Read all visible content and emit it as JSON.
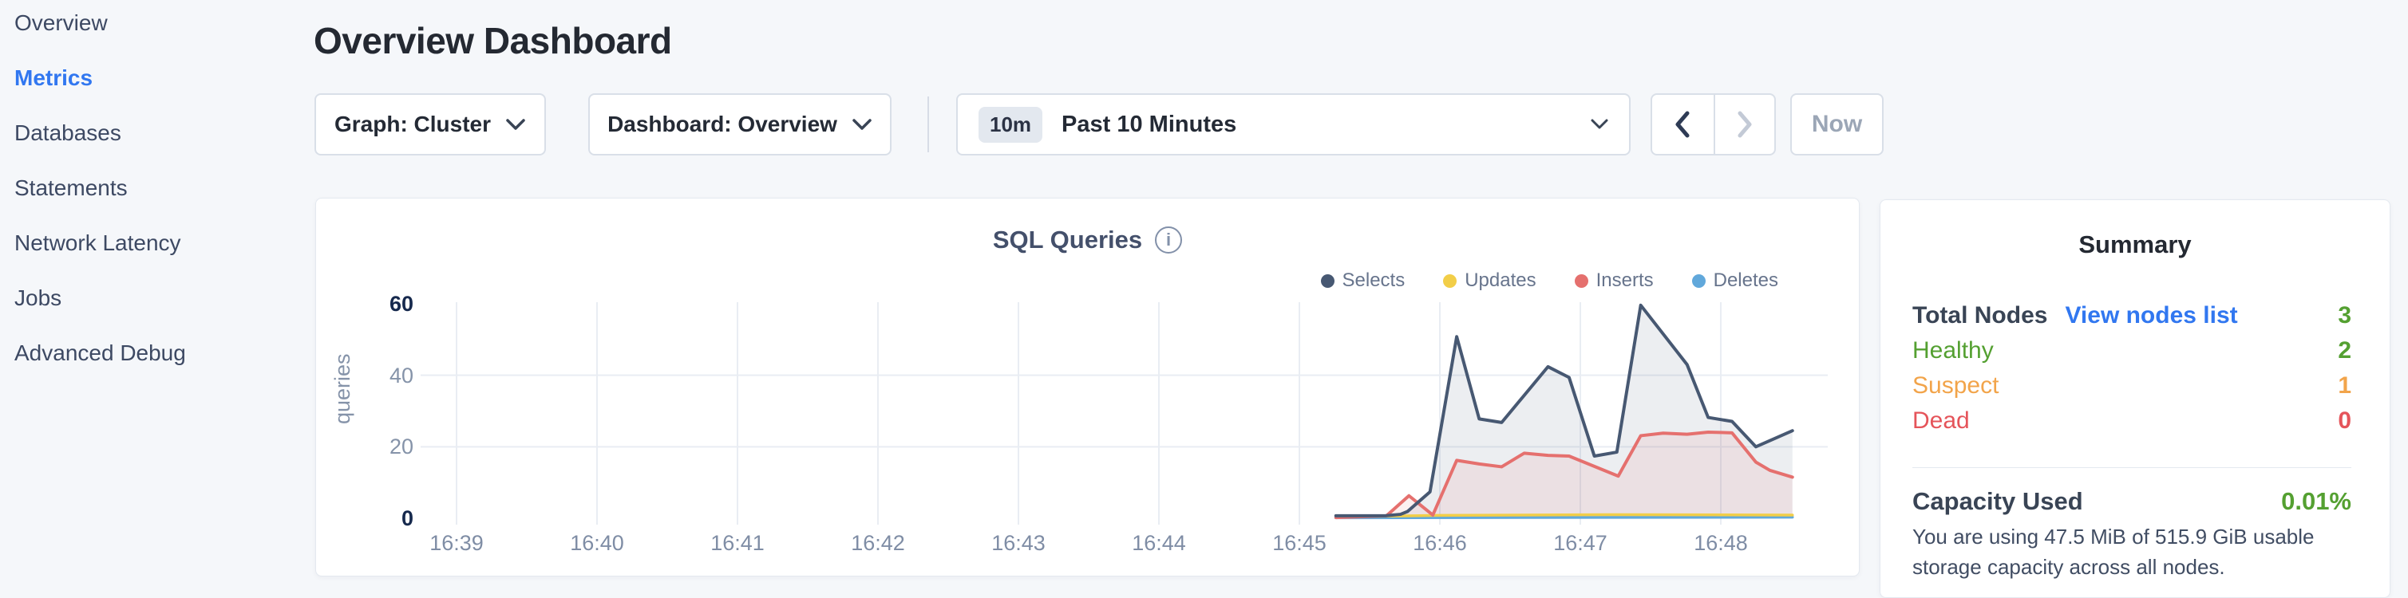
{
  "colors": {
    "accent_blue": "#3177f0",
    "green": "#54a031",
    "orange": "#f2a44a",
    "red": "#e5545a",
    "selects_navy": "#475872",
    "updates_yellow": "#f2ce48",
    "inserts_red": "#e5706e",
    "deletes_blue": "#61a8db"
  },
  "sidebar": {
    "items": [
      {
        "label": "Overview",
        "active": false
      },
      {
        "label": "Metrics",
        "active": true
      },
      {
        "label": "Databases",
        "active": false
      },
      {
        "label": "Statements",
        "active": false
      },
      {
        "label": "Network Latency",
        "active": false
      },
      {
        "label": "Jobs",
        "active": false
      },
      {
        "label": "Advanced Debug",
        "active": false
      }
    ]
  },
  "header": {
    "title": "Overview Dashboard"
  },
  "controls": {
    "graph_dropdown": "Graph: Cluster",
    "dashboard_dropdown": "Dashboard: Overview",
    "time_badge": "10m",
    "time_label": "Past 10 Minutes",
    "now_label": "Now"
  },
  "chart_data": {
    "type": "area",
    "title": "SQL Queries",
    "ylabel": "queries",
    "x_ticks": [
      "16:39",
      "16:40",
      "16:41",
      "16:42",
      "16:43",
      "16:44",
      "16:45",
      "16:46",
      "16:47",
      "16:48"
    ],
    "y_ticks": [
      60,
      40,
      20,
      0
    ],
    "ylim": [
      0,
      60
    ],
    "grid": true,
    "legend_position": "top-right",
    "series": [
      {
        "name": "Selects",
        "color": "#475872",
        "fill": "rgba(71,88,114,0.10)",
        "points": [
          [
            6.26,
            0.7
          ],
          [
            6.61,
            0.7
          ],
          [
            6.72,
            1.1
          ],
          [
            6.77,
            1.9
          ],
          [
            6.93,
            7.4
          ],
          [
            7.12,
            50.8
          ],
          [
            7.28,
            27.8
          ],
          [
            7.44,
            26.8
          ],
          [
            7.77,
            42.4
          ],
          [
            7.92,
            39.4
          ],
          [
            8.1,
            17.4
          ],
          [
            8.26,
            18.5
          ],
          [
            8.43,
            59.6
          ],
          [
            8.76,
            43.0
          ],
          [
            8.91,
            28.2
          ],
          [
            9.08,
            27.1
          ],
          [
            9.25,
            20.0
          ],
          [
            9.51,
            24.5
          ]
        ]
      },
      {
        "name": "Updates",
        "color": "#f2ce48",
        "fill": null,
        "points": [
          [
            6.26,
            0.4
          ],
          [
            7.0,
            0.8
          ],
          [
            8.2,
            1.0
          ],
          [
            9.51,
            0.9
          ]
        ]
      },
      {
        "name": "Inserts",
        "color": "#e5706e",
        "fill": "rgba(229,112,110,0.10)",
        "points": [
          [
            6.26,
            0.2
          ],
          [
            6.62,
            0.7
          ],
          [
            6.78,
            6.3
          ],
          [
            6.95,
            0.9
          ],
          [
            7.12,
            16.2
          ],
          [
            7.28,
            15.2
          ],
          [
            7.44,
            14.4
          ],
          [
            7.6,
            18.2
          ],
          [
            7.77,
            17.6
          ],
          [
            7.92,
            17.4
          ],
          [
            8.27,
            11.8
          ],
          [
            8.43,
            23.1
          ],
          [
            8.59,
            23.8
          ],
          [
            8.76,
            23.5
          ],
          [
            8.91,
            24.1
          ],
          [
            9.08,
            23.9
          ],
          [
            9.25,
            15.7
          ],
          [
            9.35,
            13.4
          ],
          [
            9.51,
            11.5
          ]
        ]
      },
      {
        "name": "Deletes",
        "color": "#61a8db",
        "fill": null,
        "points": [
          [
            6.26,
            0.15
          ],
          [
            9.51,
            0.3
          ]
        ]
      }
    ]
  },
  "summary": {
    "title": "Summary",
    "rows": [
      {
        "label": "Total Nodes",
        "link": "View nodes list",
        "value": "3",
        "label_color": "dark",
        "value_color": "green"
      },
      {
        "label": "Healthy",
        "link": null,
        "value": "2",
        "label_color": "green",
        "value_color": "green"
      },
      {
        "label": "Suspect",
        "link": null,
        "value": "1",
        "label_color": "orange",
        "value_color": "orange"
      },
      {
        "label": "Dead",
        "link": null,
        "value": "0",
        "label_color": "red",
        "value_color": "red"
      }
    ],
    "capacity": {
      "label": "Capacity Used",
      "value": "0.01%",
      "description": "You are using 47.5 MiB of 515.9 GiB usable storage capacity across all nodes."
    }
  }
}
